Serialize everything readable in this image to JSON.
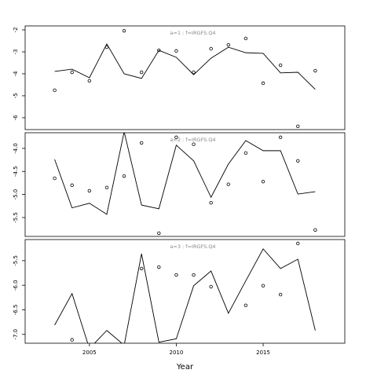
{
  "chart_data": [
    {
      "type": "line",
      "annotation": "a=1  :  f=IRGFS.Q4",
      "x": [
        2003,
        2004,
        2005,
        2006,
        2007,
        2008,
        2009,
        2010,
        2011,
        2012,
        2013,
        2014,
        2015,
        2016,
        2017,
        2018
      ],
      "series": [
        {
          "color": "#000000",
          "style": "line",
          "values": [
            -3.89,
            -3.79,
            -4.18,
            -2.64,
            -4.0,
            -4.21,
            -2.93,
            -3.25,
            -4.04,
            -3.29,
            -2.79,
            -3.04,
            -3.07,
            -3.96,
            -3.93,
            -4.71
          ]
        },
        {
          "color": "#000000",
          "style": "points",
          "values": [
            -4.75,
            -3.93,
            -4.32,
            -2.79,
            -2.04,
            -3.93,
            -2.93,
            -2.96,
            -3.93,
            -2.86,
            -2.68,
            -2.39,
            -4.43,
            -3.61,
            -6.39,
            -3.86
          ]
        }
      ],
      "xlim": [
        2001.3,
        2019.7
      ],
      "ylim": [
        -6.54,
        -1.82
      ],
      "yticks": [
        -2,
        -3,
        -4,
        -5,
        -6
      ]
    },
    {
      "type": "line",
      "annotation": "a=2  :  f=IRGFS.Q4",
      "x": [
        2003,
        2004,
        2005,
        2006,
        2007,
        2008,
        2009,
        2010,
        2011,
        2012,
        2013,
        2014,
        2015,
        2016,
        2017,
        2018
      ],
      "series": [
        {
          "color": "#000000",
          "style": "line",
          "values": [
            -4.24,
            -5.29,
            -5.19,
            -5.43,
            -3.64,
            -5.23,
            -5.31,
            -3.93,
            -4.27,
            -5.06,
            -4.34,
            -3.83,
            -4.05,
            -4.05,
            -4.99,
            -4.94
          ]
        },
        {
          "color": "#000000",
          "style": "points",
          "values": [
            -4.65,
            -4.8,
            -4.92,
            -4.85,
            -4.6,
            -3.88,
            -5.84,
            -3.76,
            -3.91,
            -5.18,
            -4.78,
            -4.1,
            -4.72,
            -3.76,
            -4.27,
            -5.77
          ]
        }
      ],
      "xlim": [
        2001.3,
        2019.7
      ],
      "ylim": [
        -5.91,
        -3.66
      ],
      "yticks": [
        {
          "value": -4,
          "label": "-4.0"
        },
        -4.5,
        {
          "value": -5,
          "label": "-5.0"
        },
        -5.5
      ]
    },
    {
      "type": "line",
      "annotation": "a=3  :  f=IRGFS.Q4",
      "x": [
        2003,
        2004,
        2005,
        2006,
        2007,
        2008,
        2009,
        2010,
        2011,
        2012,
        2013,
        2014,
        2015,
        2016,
        2017,
        2018
      ],
      "series": [
        {
          "color": "#000000",
          "style": "line",
          "values": [
            -6.81,
            -6.17,
            -7.29,
            -6.92,
            -7.22,
            -5.36,
            -7.16,
            -7.09,
            -6.01,
            -5.71,
            -6.57,
            -5.91,
            -5.26,
            -5.66,
            -5.47,
            -6.92
          ]
        },
        {
          "color": "#000000",
          "style": "points",
          "values": [
            null,
            -7.11,
            null,
            null,
            null,
            -5.66,
            -5.63,
            -5.79,
            -5.79,
            -6.03,
            null,
            -6.41,
            -6.01,
            -6.19,
            -5.15,
            null
          ]
        }
      ],
      "xlim": [
        2001.3,
        2019.7
      ],
      "ylim": [
        -7.18,
        -5.07
      ],
      "yticks": [
        -5.5,
        {
          "value": -6,
          "label": "-6.0"
        },
        -6.5,
        {
          "value": -7,
          "label": "-7.0"
        }
      ],
      "xticks": [
        2005,
        2010,
        2015
      ],
      "xlabel": "Year"
    }
  ]
}
